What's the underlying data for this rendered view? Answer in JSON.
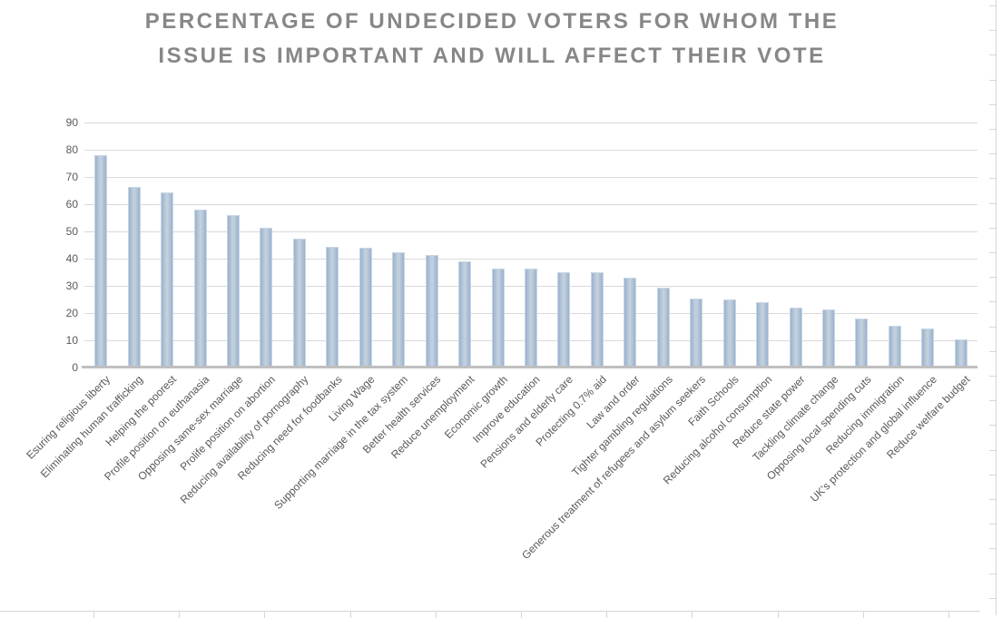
{
  "chart_data": {
    "type": "bar",
    "title": "PERCENTAGE OF UNDECIDED VOTERS FOR WHOM THE ISSUE IS IMPORTANT AND WILL AFFECT THEIR VOTE",
    "title_lines": [
      "PERCENTAGE OF UNDECIDED VOTERS FOR WHOM THE",
      "ISSUE IS IMPORTANT AND WILL AFFECT THEIR VOTE"
    ],
    "categories": [
      "Esuring religious liberty",
      "Eliminating human trafficking",
      "Helping the poorest",
      "Profile position on euthanasia",
      "Opposing same-sex marriage",
      "Prolife position on abortion",
      "Reducing availability of pornography",
      "Reducing need for foodbanks",
      "Living Wage",
      "Supporting marriage in the tax system",
      "Better health services",
      "Reduce unemployment",
      "Economic growth",
      "Improve education",
      "Pensions and elderly care",
      "Protecting 0.7% aid",
      "Law and order",
      "Tighter gambling regulations",
      "Generous treatment of refugees and asylum seekers",
      "Faith Schools",
      "Reducing alcohol consumption",
      "Reduce state power",
      "Tackling climate change",
      "Opposing local spending cuts",
      "Reducing immigration",
      "UK's protection and global influence",
      "Reduce welfare budget"
    ],
    "values": [
      78,
      66.5,
      64.5,
      58,
      56,
      51.5,
      47.5,
      44.5,
      44,
      42.5,
      41.5,
      39,
      36.5,
      36.5,
      35,
      35,
      33,
      29.5,
      25.5,
      25,
      24,
      22,
      21.5,
      18,
      15.5,
      14.5,
      10.5
    ],
    "xlabel": "",
    "ylabel": "",
    "ylim": [
      0,
      90
    ],
    "yticks": [
      0,
      10,
      20,
      30,
      40,
      50,
      60,
      70,
      80,
      90
    ],
    "grid": true,
    "legend": false,
    "colors": {
      "bar_edge": "#92adca",
      "bar_center": "#c2cfde",
      "bar_border": "#c9d6e3",
      "gridline": "#d9d9d9",
      "axis_line": "#bfbfbf",
      "title_text": "#878787",
      "tick_text": "#595959",
      "category_text": "#595959"
    }
  }
}
